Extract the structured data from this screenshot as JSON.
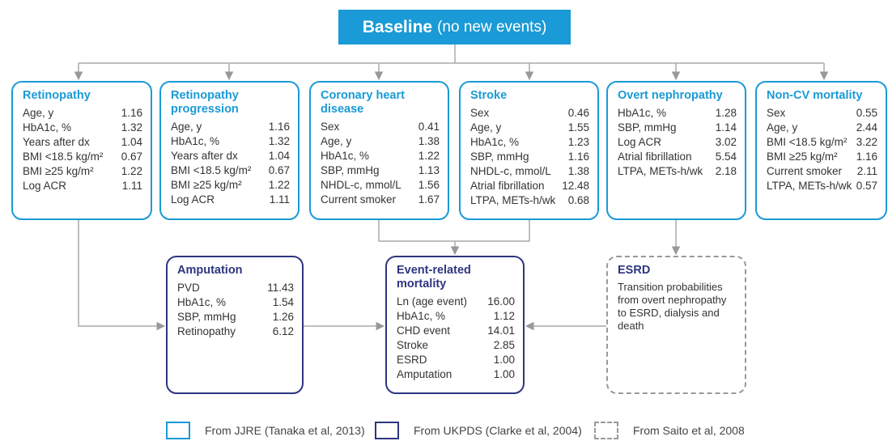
{
  "header": {
    "title": "Baseline",
    "subtitle": "(no new events)"
  },
  "boxes": [
    {
      "title": "Retinopathy",
      "rows": [
        [
          "Age, y",
          "1.16"
        ],
        [
          "HbA1c, %",
          "1.32"
        ],
        [
          "Years after dx",
          "1.04"
        ],
        [
          "BMI <18.5 kg/m²",
          "0.67"
        ],
        [
          "BMI ≥25 kg/m²",
          "1.22"
        ],
        [
          "Log ACR",
          "1.11"
        ]
      ]
    },
    {
      "title": "Retinopathy progression",
      "rows": [
        [
          "Age, y",
          "1.16"
        ],
        [
          "HbA1c, %",
          "1.32"
        ],
        [
          "Years after dx",
          "1.04"
        ],
        [
          "BMI <18.5 kg/m²",
          "0.67"
        ],
        [
          "BMI ≥25 kg/m²",
          "1.22"
        ],
        [
          "Log ACR",
          "1.11"
        ]
      ]
    },
    {
      "title": "Coronary heart disease",
      "rows": [
        [
          "Sex",
          "0.41"
        ],
        [
          "Age, y",
          "1.38"
        ],
        [
          "HbA1c, %",
          "1.22"
        ],
        [
          "SBP, mmHg",
          "1.13"
        ],
        [
          "NHDL-c, mmol/L",
          "1.56"
        ],
        [
          "Current smoker",
          "1.67"
        ]
      ]
    },
    {
      "title": "Stroke",
      "rows": [
        [
          "Sex",
          "0.46"
        ],
        [
          "Age, y",
          "1.55"
        ],
        [
          "HbA1c, %",
          "1.23"
        ],
        [
          "SBP, mmHg",
          "1.16"
        ],
        [
          "NHDL-c, mmol/L",
          "1.38"
        ],
        [
          "Atrial fibrillation",
          "12.48"
        ],
        [
          "LTPA, METs-h/wk",
          "0.68"
        ]
      ]
    },
    {
      "title": "Overt nephropathy",
      "rows": [
        [
          "HbA1c, %",
          "1.28"
        ],
        [
          "SBP, mmHg",
          "1.14"
        ],
        [
          "Log ACR",
          "3.02"
        ],
        [
          "Atrial fibrillation",
          "5.54"
        ],
        [
          "LTPA, METs-h/wk",
          "2.18"
        ]
      ]
    },
    {
      "title": "Non-CV mortality",
      "rows": [
        [
          "Sex",
          "0.55"
        ],
        [
          "Age, y",
          "2.44"
        ],
        [
          "BMI <18.5 kg/m²",
          "3.22"
        ],
        [
          "BMI ≥25 kg/m²",
          "1.16"
        ],
        [
          "Current smoker",
          "2.11"
        ],
        [
          "LTPA, METs-h/wk",
          "0.57"
        ]
      ]
    }
  ],
  "outcomes": [
    {
      "title": "Amputation",
      "rows": [
        [
          "PVD",
          "11.43"
        ],
        [
          "HbA1c, %",
          "1.54"
        ],
        [
          "SBP, mmHg",
          "1.26"
        ],
        [
          "Retinopathy",
          "6.12"
        ]
      ]
    },
    {
      "title": "Event-related mortality",
      "rows": [
        [
          "Ln (age event)",
          "16.00"
        ],
        [
          "HbA1c, %",
          "1.12"
        ],
        [
          "CHD event",
          "14.01"
        ],
        [
          "Stroke",
          "2.85"
        ],
        [
          "ESRD",
          "1.00"
        ],
        [
          "Amputation",
          "1.00"
        ]
      ]
    }
  ],
  "esrd": {
    "title": "ESRD",
    "text": "Transition probabilities from overt nephropathy to ESRD, dialysis and death"
  },
  "legend": [
    "From JJRE (Tanaka et al, 2013)",
    "From UKPDS (Clarke et al, 2004)",
    "From Saito et al, 2008"
  ]
}
